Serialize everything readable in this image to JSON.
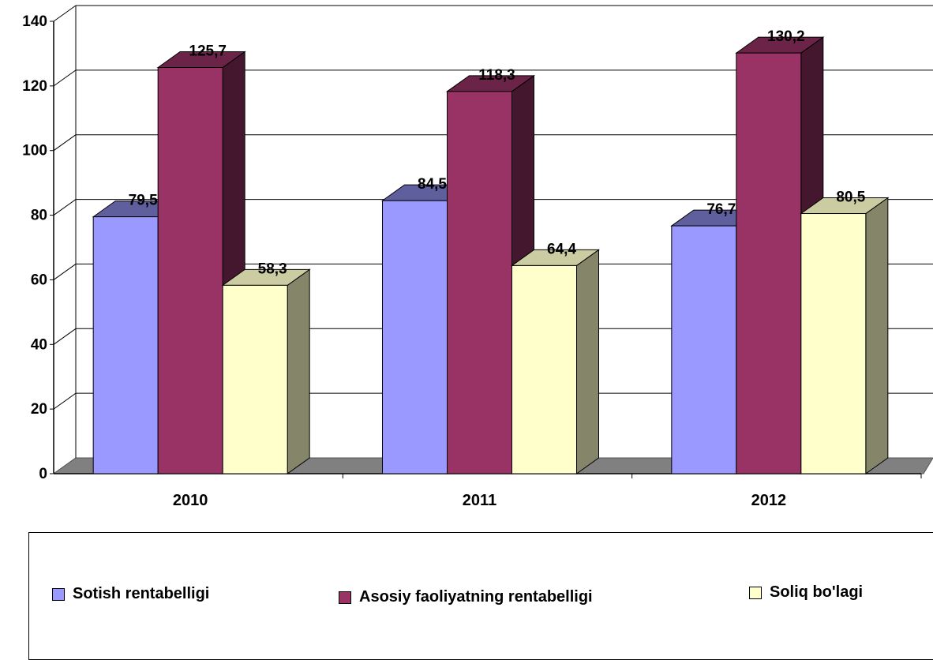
{
  "chart_data": {
    "type": "bar",
    "categories": [
      "2010",
      "2011",
      "2012"
    ],
    "series": [
      {
        "name": "Sotish rentabelligi",
        "values": [
          79.5,
          84.5,
          76.7
        ],
        "labels": [
          "79,5",
          "84,5",
          "76,7"
        ],
        "color": "#9999FF"
      },
      {
        "name": "Asosiy faoliyatning rentabelligi",
        "values": [
          125.7,
          118.3,
          130.2
        ],
        "labels": [
          "125,7",
          "118,3",
          "130,2"
        ],
        "color": "#993366"
      },
      {
        "name": "Soliq bo'lagi",
        "values": [
          58.3,
          64.4,
          80.5
        ],
        "labels": [
          "58,3",
          "64,4",
          "80,5"
        ],
        "color": "#FFFFCC"
      }
    ],
    "ylim": [
      0,
      140
    ],
    "yticks": [
      "0",
      "20",
      "40",
      "60",
      "80",
      "100",
      "120",
      "140"
    ],
    "grid": true,
    "legend_position": "bottom",
    "style": "3d-clustered-column"
  }
}
